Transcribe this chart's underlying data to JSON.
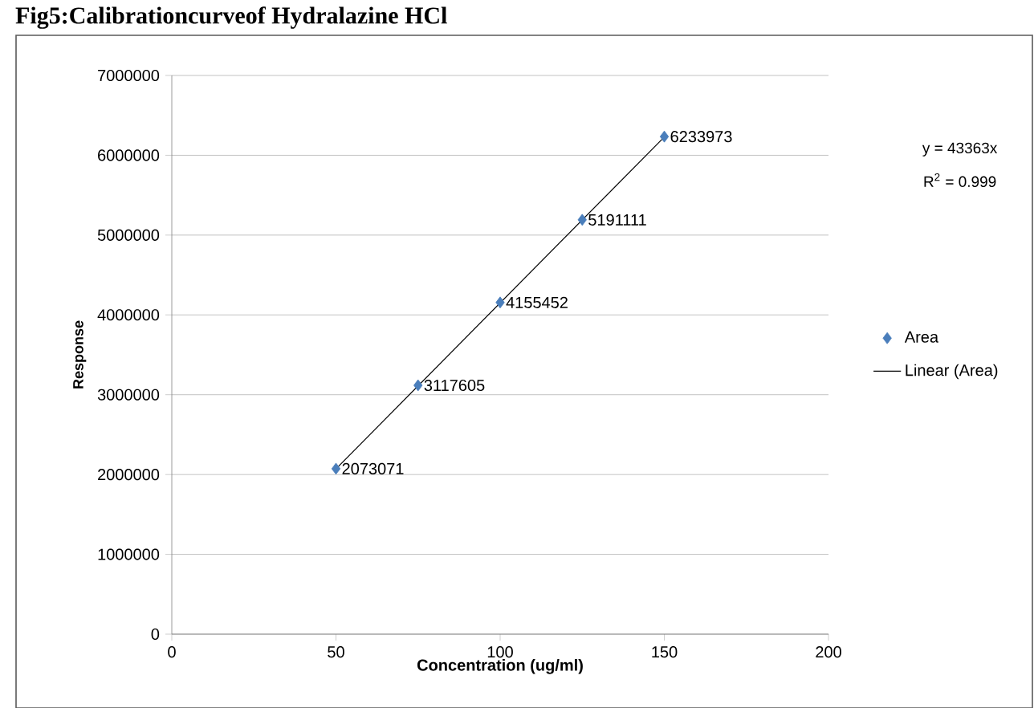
{
  "chart_data": {
    "type": "scatter",
    "title": "Fig5:Calibrationcurveof Hydralazine HCl",
    "xlabel": "Concentration (ug/ml)",
    "ylabel": "Response",
    "series": [
      {
        "name": "Area",
        "color": "#4a7ebb",
        "marker": "diamond",
        "x": [
          50,
          75,
          100,
          125,
          150
        ],
        "values": [
          2073071,
          3117605,
          4155452,
          5191111,
          6233973
        ],
        "value_labels": [
          "2073071",
          "3117605",
          "4155452",
          "5191111",
          "6233973"
        ]
      },
      {
        "name": "Linear (Area)",
        "type": "line",
        "color": "#000000",
        "marker": "none",
        "line_style": "solid",
        "x": [
          50,
          150
        ],
        "values": [
          2070000,
          6230000
        ]
      }
    ],
    "annotations": [
      "y = 43363x",
      "R$^{2}$ = 0.999"
    ],
    "xlim": [
      0,
      200
    ],
    "xticks": [
      0,
      50,
      100,
      150,
      200
    ],
    "ylim": [
      0,
      7000000
    ],
    "yticks": [
      0,
      1000000,
      2000000,
      3000000,
      4000000,
      5000000,
      6000000,
      7000000
    ],
    "grid": "y",
    "legend": "right"
  }
}
